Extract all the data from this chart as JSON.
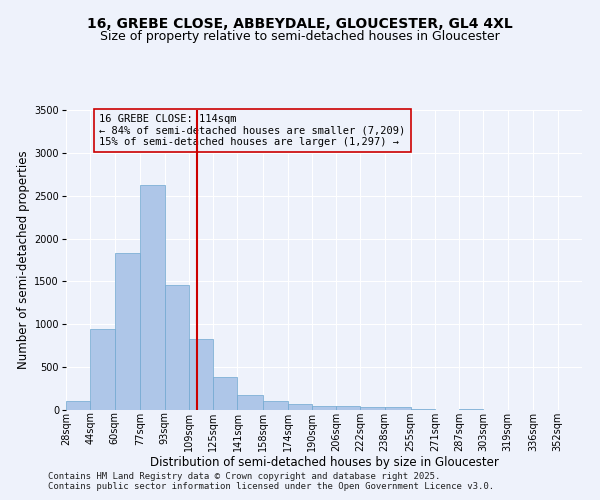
{
  "title1": "16, GREBE CLOSE, ABBEYDALE, GLOUCESTER, GL4 4XL",
  "title2": "Size of property relative to semi-detached houses in Gloucester",
  "xlabel": "Distribution of semi-detached houses by size in Gloucester",
  "ylabel": "Number of semi-detached properties",
  "footnote1": "Contains HM Land Registry data © Crown copyright and database right 2025.",
  "footnote2": "Contains public sector information licensed under the Open Government Licence v3.0.",
  "annotation_line1": "16 GREBE CLOSE: 114sqm",
  "annotation_line2": "← 84% of semi-detached houses are smaller (7,209)",
  "annotation_line3": "15% of semi-detached houses are larger (1,297) →",
  "property_size": 114,
  "bin_labels": [
    "28sqm",
    "44sqm",
    "60sqm",
    "77sqm",
    "93sqm",
    "109sqm",
    "125sqm",
    "141sqm",
    "158sqm",
    "174sqm",
    "190sqm",
    "206sqm",
    "222sqm",
    "238sqm",
    "255sqm",
    "271sqm",
    "287sqm",
    "303sqm",
    "319sqm",
    "336sqm",
    "352sqm"
  ],
  "bin_starts": [
    28,
    44,
    60,
    77,
    93,
    109,
    125,
    141,
    158,
    174,
    190,
    206,
    222,
    238,
    255,
    271,
    287,
    303,
    319,
    336,
    352
  ],
  "bar_values": [
    100,
    950,
    1830,
    2630,
    1460,
    830,
    380,
    170,
    110,
    65,
    50,
    45,
    30,
    40,
    10,
    5,
    10,
    5,
    5,
    0,
    5
  ],
  "bar_color": "#aec6e8",
  "bar_edge_color": "#6fa8d0",
  "vline_color": "#cc0000",
  "bg_color": "#eef2fb",
  "box_color": "#cc0000",
  "ylim": [
    0,
    3500
  ],
  "ytick_interval": 500,
  "title1_fontsize": 10,
  "title2_fontsize": 9,
  "annotation_fontsize": 7.5,
  "axis_label_fontsize": 8.5,
  "tick_fontsize": 7,
  "footnote_fontsize": 6.5
}
